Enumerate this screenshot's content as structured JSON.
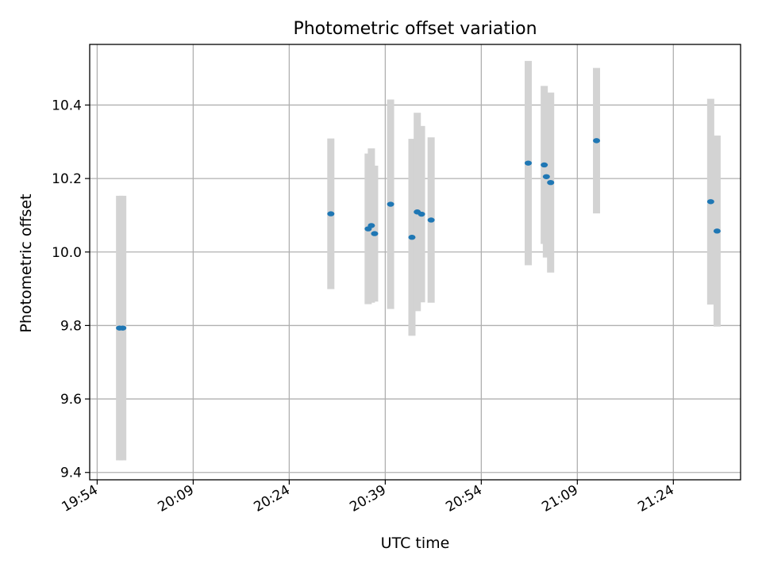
{
  "chart_data": {
    "type": "scatter",
    "title": "Photometric offset variation",
    "xlabel": "UTC time",
    "ylabel": "Photometric offset",
    "x_ticks": [
      "19:54",
      "20:09",
      "20:24",
      "20:39",
      "20:54",
      "21:09",
      "21:24"
    ],
    "y_ticks": [
      "9.4",
      "9.6",
      "9.8",
      "10.0",
      "10.2",
      "10.4"
    ],
    "xlim": [
      "19:52:50",
      "21:34:30"
    ],
    "ylim": [
      9.38,
      10.565
    ],
    "grid": true,
    "points": [
      {
        "x": "19:57:30",
        "y": 9.793,
        "err": 0.36
      },
      {
        "x": "19:58:00",
        "y": 9.793,
        "err": 0.36
      },
      {
        "x": "20:30:30",
        "y": 10.104,
        "err": 0.205
      },
      {
        "x": "20:36:20",
        "y": 10.063,
        "err": 0.205
      },
      {
        "x": "20:36:50",
        "y": 10.072,
        "err": 0.21
      },
      {
        "x": "20:37:20",
        "y": 10.05,
        "err": 0.185
      },
      {
        "x": "20:39:50",
        "y": 10.13,
        "err": 0.285
      },
      {
        "x": "20:43:10",
        "y": 10.04,
        "err": 0.268
      },
      {
        "x": "20:44:00",
        "y": 10.109,
        "err": 0.27
      },
      {
        "x": "20:44:40",
        "y": 10.103,
        "err": 0.24
      },
      {
        "x": "20:46:10",
        "y": 10.087,
        "err": 0.225
      },
      {
        "x": "21:01:20",
        "y": 10.242,
        "err": 0.278
      },
      {
        "x": "21:03:50",
        "y": 10.237,
        "err": 0.215
      },
      {
        "x": "21:04:10",
        "y": 10.205,
        "err": 0.22
      },
      {
        "x": "21:04:50",
        "y": 10.189,
        "err": 0.245
      },
      {
        "x": "21:12:00",
        "y": 10.303,
        "err": 0.198
      },
      {
        "x": "21:29:50",
        "y": 10.137,
        "err": 0.28
      },
      {
        "x": "21:30:50",
        "y": 10.057,
        "err": 0.26
      }
    ],
    "colors": {
      "marker": "#1f77b4",
      "errorbar": "#d3d3d3",
      "grid": "#b0b0b0",
      "axes": "#000000"
    }
  }
}
